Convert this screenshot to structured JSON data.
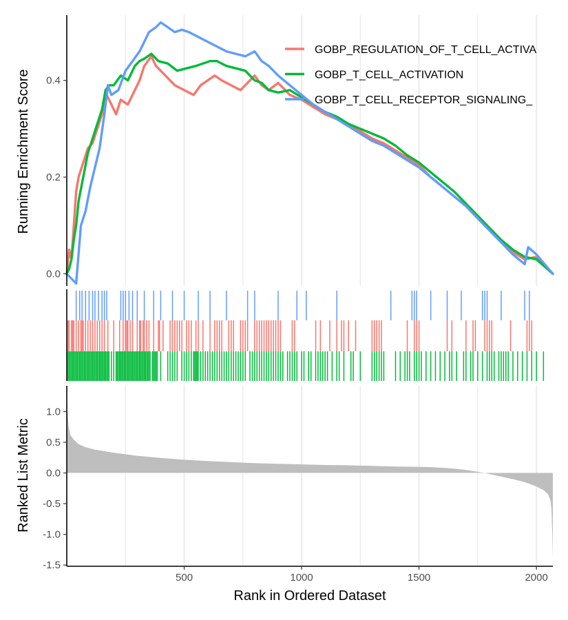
{
  "chart_data": {
    "type": "gsea_enrichment_plot",
    "x_axis": {
      "label": "Rank in Ordered Dataset",
      "range": [
        0,
        2070
      ],
      "ticks": [
        500,
        1000,
        1500,
        2000
      ],
      "tick_labels": [
        "500",
        "1000",
        "1500",
        "2000"
      ]
    },
    "panels": {
      "running_score": {
        "ylabel": "Running Enrichment Score",
        "ylim": [
          -0.025,
          0.535
        ],
        "yticks": [
          0.0,
          0.2,
          0.4
        ],
        "ytick_labels": [
          "0.0",
          "0.2",
          "0.4"
        ],
        "grid": "vertical major and minor lines",
        "legend_position": "top-right"
      },
      "ranked_metric": {
        "type": "area",
        "ylabel": "Ranked List Metric",
        "ylim": [
          -1.52,
          1.42
        ],
        "yticks": [
          1.0,
          0.5,
          0.0,
          -0.5,
          -1.0,
          -1.5
        ],
        "ytick_labels": [
          "1.0",
          "0.5",
          "0.0",
          "-0.5",
          "-1.0",
          "-1.5"
        ],
        "fill_color": "#bebebe",
        "profile": [
          [
            0,
            1.35
          ],
          [
            3,
            1.0
          ],
          [
            8,
            0.75
          ],
          [
            15,
            0.62
          ],
          [
            30,
            0.54
          ],
          [
            50,
            0.47
          ],
          [
            80,
            0.42
          ],
          [
            120,
            0.38
          ],
          [
            200,
            0.33
          ],
          [
            300,
            0.28
          ],
          [
            400,
            0.245
          ],
          [
            500,
            0.215
          ],
          [
            600,
            0.195
          ],
          [
            700,
            0.175
          ],
          [
            800,
            0.16
          ],
          [
            900,
            0.15
          ],
          [
            1000,
            0.14
          ],
          [
            1100,
            0.13
          ],
          [
            1200,
            0.125
          ],
          [
            1300,
            0.115
          ],
          [
            1400,
            0.105
          ],
          [
            1500,
            0.1
          ],
          [
            1550,
            0.095
          ],
          [
            1600,
            0.085
          ],
          [
            1650,
            0.07
          ],
          [
            1700,
            0.05
          ],
          [
            1750,
            0.02
          ],
          [
            1780,
            0.0
          ],
          [
            1800,
            -0.02
          ],
          [
            1850,
            -0.06
          ],
          [
            1900,
            -0.1
          ],
          [
            1950,
            -0.15
          ],
          [
            2000,
            -0.22
          ],
          [
            2030,
            -0.28
          ],
          [
            2050,
            -0.35
          ],
          [
            2060,
            -0.45
          ],
          [
            2064,
            -0.6
          ],
          [
            2066,
            -0.8
          ],
          [
            2068,
            -1.05
          ],
          [
            2070,
            -1.4
          ]
        ]
      }
    },
    "series": [
      {
        "name": "GOBP_REGULATION_OF_T_CELL_ACTIVA",
        "color": "#F8766D",
        "points": [
          [
            0,
            0.0
          ],
          [
            10,
            0.05
          ],
          [
            20,
            0.03
          ],
          [
            30,
            0.1
          ],
          [
            40,
            0.17
          ],
          [
            50,
            0.2
          ],
          [
            70,
            0.23
          ],
          [
            90,
            0.26
          ],
          [
            110,
            0.27
          ],
          [
            130,
            0.3
          ],
          [
            150,
            0.33
          ],
          [
            170,
            0.37
          ],
          [
            190,
            0.35
          ],
          [
            210,
            0.33
          ],
          [
            230,
            0.36
          ],
          [
            260,
            0.35
          ],
          [
            290,
            0.38
          ],
          [
            310,
            0.4
          ],
          [
            330,
            0.43
          ],
          [
            345,
            0.44
          ],
          [
            360,
            0.45
          ],
          [
            380,
            0.43
          ],
          [
            420,
            0.41
          ],
          [
            460,
            0.39
          ],
          [
            500,
            0.38
          ],
          [
            540,
            0.37
          ],
          [
            570,
            0.39
          ],
          [
            600,
            0.4
          ],
          [
            630,
            0.41
          ],
          [
            660,
            0.4
          ],
          [
            700,
            0.39
          ],
          [
            740,
            0.38
          ],
          [
            770,
            0.395
          ],
          [
            800,
            0.41
          ],
          [
            830,
            0.39
          ],
          [
            860,
            0.38
          ],
          [
            900,
            0.395
          ],
          [
            950,
            0.37
          ],
          [
            1000,
            0.36
          ],
          [
            1050,
            0.345
          ],
          [
            1100,
            0.33
          ],
          [
            1150,
            0.32
          ],
          [
            1200,
            0.31
          ],
          [
            1250,
            0.295
          ],
          [
            1300,
            0.28
          ],
          [
            1350,
            0.27
          ],
          [
            1400,
            0.255
          ],
          [
            1450,
            0.24
          ],
          [
            1500,
            0.225
          ],
          [
            1550,
            0.2
          ],
          [
            1600,
            0.18
          ],
          [
            1650,
            0.16
          ],
          [
            1700,
            0.14
          ],
          [
            1750,
            0.115
          ],
          [
            1800,
            0.09
          ],
          [
            1850,
            0.065
          ],
          [
            1900,
            0.045
          ],
          [
            1950,
            0.03
          ],
          [
            2000,
            0.035
          ],
          [
            2070,
            0.0
          ]
        ]
      },
      {
        "name": "GOBP_T_CELL_ACTIVATION",
        "color": "#00BA38",
        "points": [
          [
            0,
            0.0
          ],
          [
            10,
            0.01
          ],
          [
            20,
            0.03
          ],
          [
            30,
            0.07
          ],
          [
            40,
            0.1
          ],
          [
            50,
            0.15
          ],
          [
            70,
            0.2
          ],
          [
            90,
            0.25
          ],
          [
            110,
            0.28
          ],
          [
            130,
            0.31
          ],
          [
            150,
            0.34
          ],
          [
            165,
            0.38
          ],
          [
            180,
            0.39
          ],
          [
            200,
            0.39
          ],
          [
            230,
            0.41
          ],
          [
            260,
            0.4
          ],
          [
            290,
            0.43
          ],
          [
            310,
            0.44
          ],
          [
            330,
            0.445
          ],
          [
            345,
            0.45
          ],
          [
            360,
            0.455
          ],
          [
            390,
            0.44
          ],
          [
            430,
            0.435
          ],
          [
            470,
            0.42
          ],
          [
            510,
            0.425
          ],
          [
            550,
            0.43
          ],
          [
            580,
            0.435
          ],
          [
            610,
            0.44
          ],
          [
            640,
            0.44
          ],
          [
            680,
            0.43
          ],
          [
            720,
            0.425
          ],
          [
            760,
            0.42
          ],
          [
            800,
            0.4
          ],
          [
            830,
            0.395
          ],
          [
            860,
            0.38
          ],
          [
            900,
            0.375
          ],
          [
            950,
            0.38
          ],
          [
            1000,
            0.365
          ],
          [
            1050,
            0.35
          ],
          [
            1100,
            0.335
          ],
          [
            1150,
            0.325
          ],
          [
            1200,
            0.31
          ],
          [
            1250,
            0.3
          ],
          [
            1300,
            0.29
          ],
          [
            1350,
            0.28
          ],
          [
            1400,
            0.265
          ],
          [
            1450,
            0.245
          ],
          [
            1500,
            0.23
          ],
          [
            1550,
            0.21
          ],
          [
            1600,
            0.19
          ],
          [
            1650,
            0.17
          ],
          [
            1700,
            0.145
          ],
          [
            1750,
            0.12
          ],
          [
            1800,
            0.095
          ],
          [
            1850,
            0.07
          ],
          [
            1900,
            0.05
          ],
          [
            1950,
            0.035
          ],
          [
            2000,
            0.03
          ],
          [
            2070,
            0.0
          ]
        ]
      },
      {
        "name": "GOBP_T_CELL_RECEPTOR_SIGNALING_",
        "color": "#619CFF",
        "points": [
          [
            0,
            0.0
          ],
          [
            20,
            -0.01
          ],
          [
            40,
            -0.02
          ],
          [
            60,
            0.1
          ],
          [
            80,
            0.13
          ],
          [
            100,
            0.18
          ],
          [
            120,
            0.22
          ],
          [
            140,
            0.26
          ],
          [
            160,
            0.33
          ],
          [
            175,
            0.39
          ],
          [
            190,
            0.37
          ],
          [
            220,
            0.38
          ],
          [
            250,
            0.42
          ],
          [
            280,
            0.44
          ],
          [
            310,
            0.46
          ],
          [
            330,
            0.48
          ],
          [
            350,
            0.5
          ],
          [
            380,
            0.51
          ],
          [
            400,
            0.52
          ],
          [
            430,
            0.51
          ],
          [
            460,
            0.5
          ],
          [
            490,
            0.505
          ],
          [
            520,
            0.5
          ],
          [
            560,
            0.49
          ],
          [
            600,
            0.48
          ],
          [
            640,
            0.47
          ],
          [
            680,
            0.46
          ],
          [
            720,
            0.455
          ],
          [
            760,
            0.45
          ],
          [
            800,
            0.46
          ],
          [
            830,
            0.44
          ],
          [
            860,
            0.43
          ],
          [
            900,
            0.41
          ],
          [
            950,
            0.39
          ],
          [
            1000,
            0.37
          ],
          [
            1050,
            0.35
          ],
          [
            1100,
            0.335
          ],
          [
            1150,
            0.32
          ],
          [
            1200,
            0.305
          ],
          [
            1250,
            0.29
          ],
          [
            1300,
            0.275
          ],
          [
            1350,
            0.265
          ],
          [
            1400,
            0.25
          ],
          [
            1450,
            0.235
          ],
          [
            1500,
            0.22
          ],
          [
            1550,
            0.2
          ],
          [
            1600,
            0.18
          ],
          [
            1650,
            0.16
          ],
          [
            1700,
            0.14
          ],
          [
            1750,
            0.115
          ],
          [
            1800,
            0.09
          ],
          [
            1850,
            0.065
          ],
          [
            1900,
            0.04
          ],
          [
            1950,
            0.02
          ],
          [
            1965,
            0.055
          ],
          [
            2000,
            0.04
          ],
          [
            2070,
            0.0
          ]
        ]
      }
    ],
    "hit_ranks": {
      "blue": [
        40,
        55,
        65,
        80,
        95,
        110,
        120,
        135,
        150,
        160,
        170,
        230,
        240,
        250,
        265,
        280,
        300,
        330,
        370,
        400,
        450,
        500,
        560,
        610,
        680,
        770,
        800,
        900,
        980,
        1020,
        1150,
        1380,
        1470,
        1480,
        1490,
        1550,
        1620,
        1680,
        1770,
        1780,
        1790,
        1850,
        1950,
        1970
      ],
      "red": [
        5,
        10,
        20,
        25,
        30,
        40,
        50,
        60,
        65,
        70,
        80,
        90,
        100,
        110,
        120,
        130,
        140,
        150,
        160,
        175,
        200,
        225,
        240,
        250,
        255,
        260,
        270,
        280,
        300,
        310,
        315,
        325,
        330,
        340,
        350,
        370,
        390,
        395,
        410,
        440,
        450,
        460,
        470,
        480,
        490,
        510,
        520,
        530,
        550,
        560,
        580,
        610,
        630,
        640,
        650,
        660,
        690,
        700,
        710,
        740,
        750,
        760,
        770,
        800,
        810,
        820,
        830,
        840,
        850,
        860,
        870,
        880,
        890,
        900,
        910,
        960,
        970,
        1060,
        1080,
        1120,
        1150,
        1170,
        1180,
        1200,
        1230,
        1300,
        1310,
        1320,
        1330,
        1340,
        1450,
        1480,
        1490,
        1500,
        1620,
        1640,
        1700,
        1730,
        1740,
        1780,
        1790,
        1800,
        1810,
        1890,
        1960,
        1970,
        1980
      ],
      "green": [
        5,
        10,
        15,
        20,
        25,
        30,
        35,
        40,
        45,
        50,
        55,
        60,
        65,
        70,
        75,
        80,
        85,
        90,
        95,
        100,
        105,
        110,
        115,
        120,
        125,
        130,
        135,
        140,
        145,
        150,
        155,
        160,
        165,
        170,
        175,
        180,
        190,
        200,
        210,
        215,
        220,
        225,
        230,
        235,
        240,
        245,
        250,
        255,
        260,
        265,
        270,
        275,
        280,
        285,
        290,
        295,
        300,
        305,
        310,
        315,
        320,
        325,
        330,
        335,
        340,
        345,
        350,
        355,
        365,
        370,
        375,
        380,
        385,
        400,
        430,
        440,
        450,
        460,
        470,
        490,
        500,
        510,
        520,
        530,
        540,
        545,
        550,
        555,
        560,
        570,
        580,
        590,
        600,
        610,
        620,
        630,
        640,
        650,
        660,
        670,
        680,
        690,
        700,
        710,
        720,
        730,
        740,
        750,
        760,
        780,
        790,
        800,
        810,
        820,
        830,
        840,
        850,
        860,
        870,
        880,
        890,
        900,
        910,
        920,
        940,
        950,
        960,
        970,
        980,
        1000,
        1010,
        1030,
        1040,
        1060,
        1070,
        1080,
        1090,
        1100,
        1110,
        1130,
        1150,
        1160,
        1180,
        1210,
        1220,
        1250,
        1300,
        1310,
        1320,
        1330,
        1340,
        1350,
        1400,
        1420,
        1440,
        1450,
        1460,
        1480,
        1490,
        1500,
        1510,
        1530,
        1550,
        1570,
        1590,
        1610,
        1630,
        1640,
        1660,
        1690,
        1700,
        1720,
        1730,
        1750,
        1770,
        1790,
        1800,
        1810,
        1820,
        1840,
        1850,
        1860,
        1870,
        1880,
        1900,
        1920,
        1940,
        1960,
        1980,
        2000,
        2030
      ]
    }
  }
}
